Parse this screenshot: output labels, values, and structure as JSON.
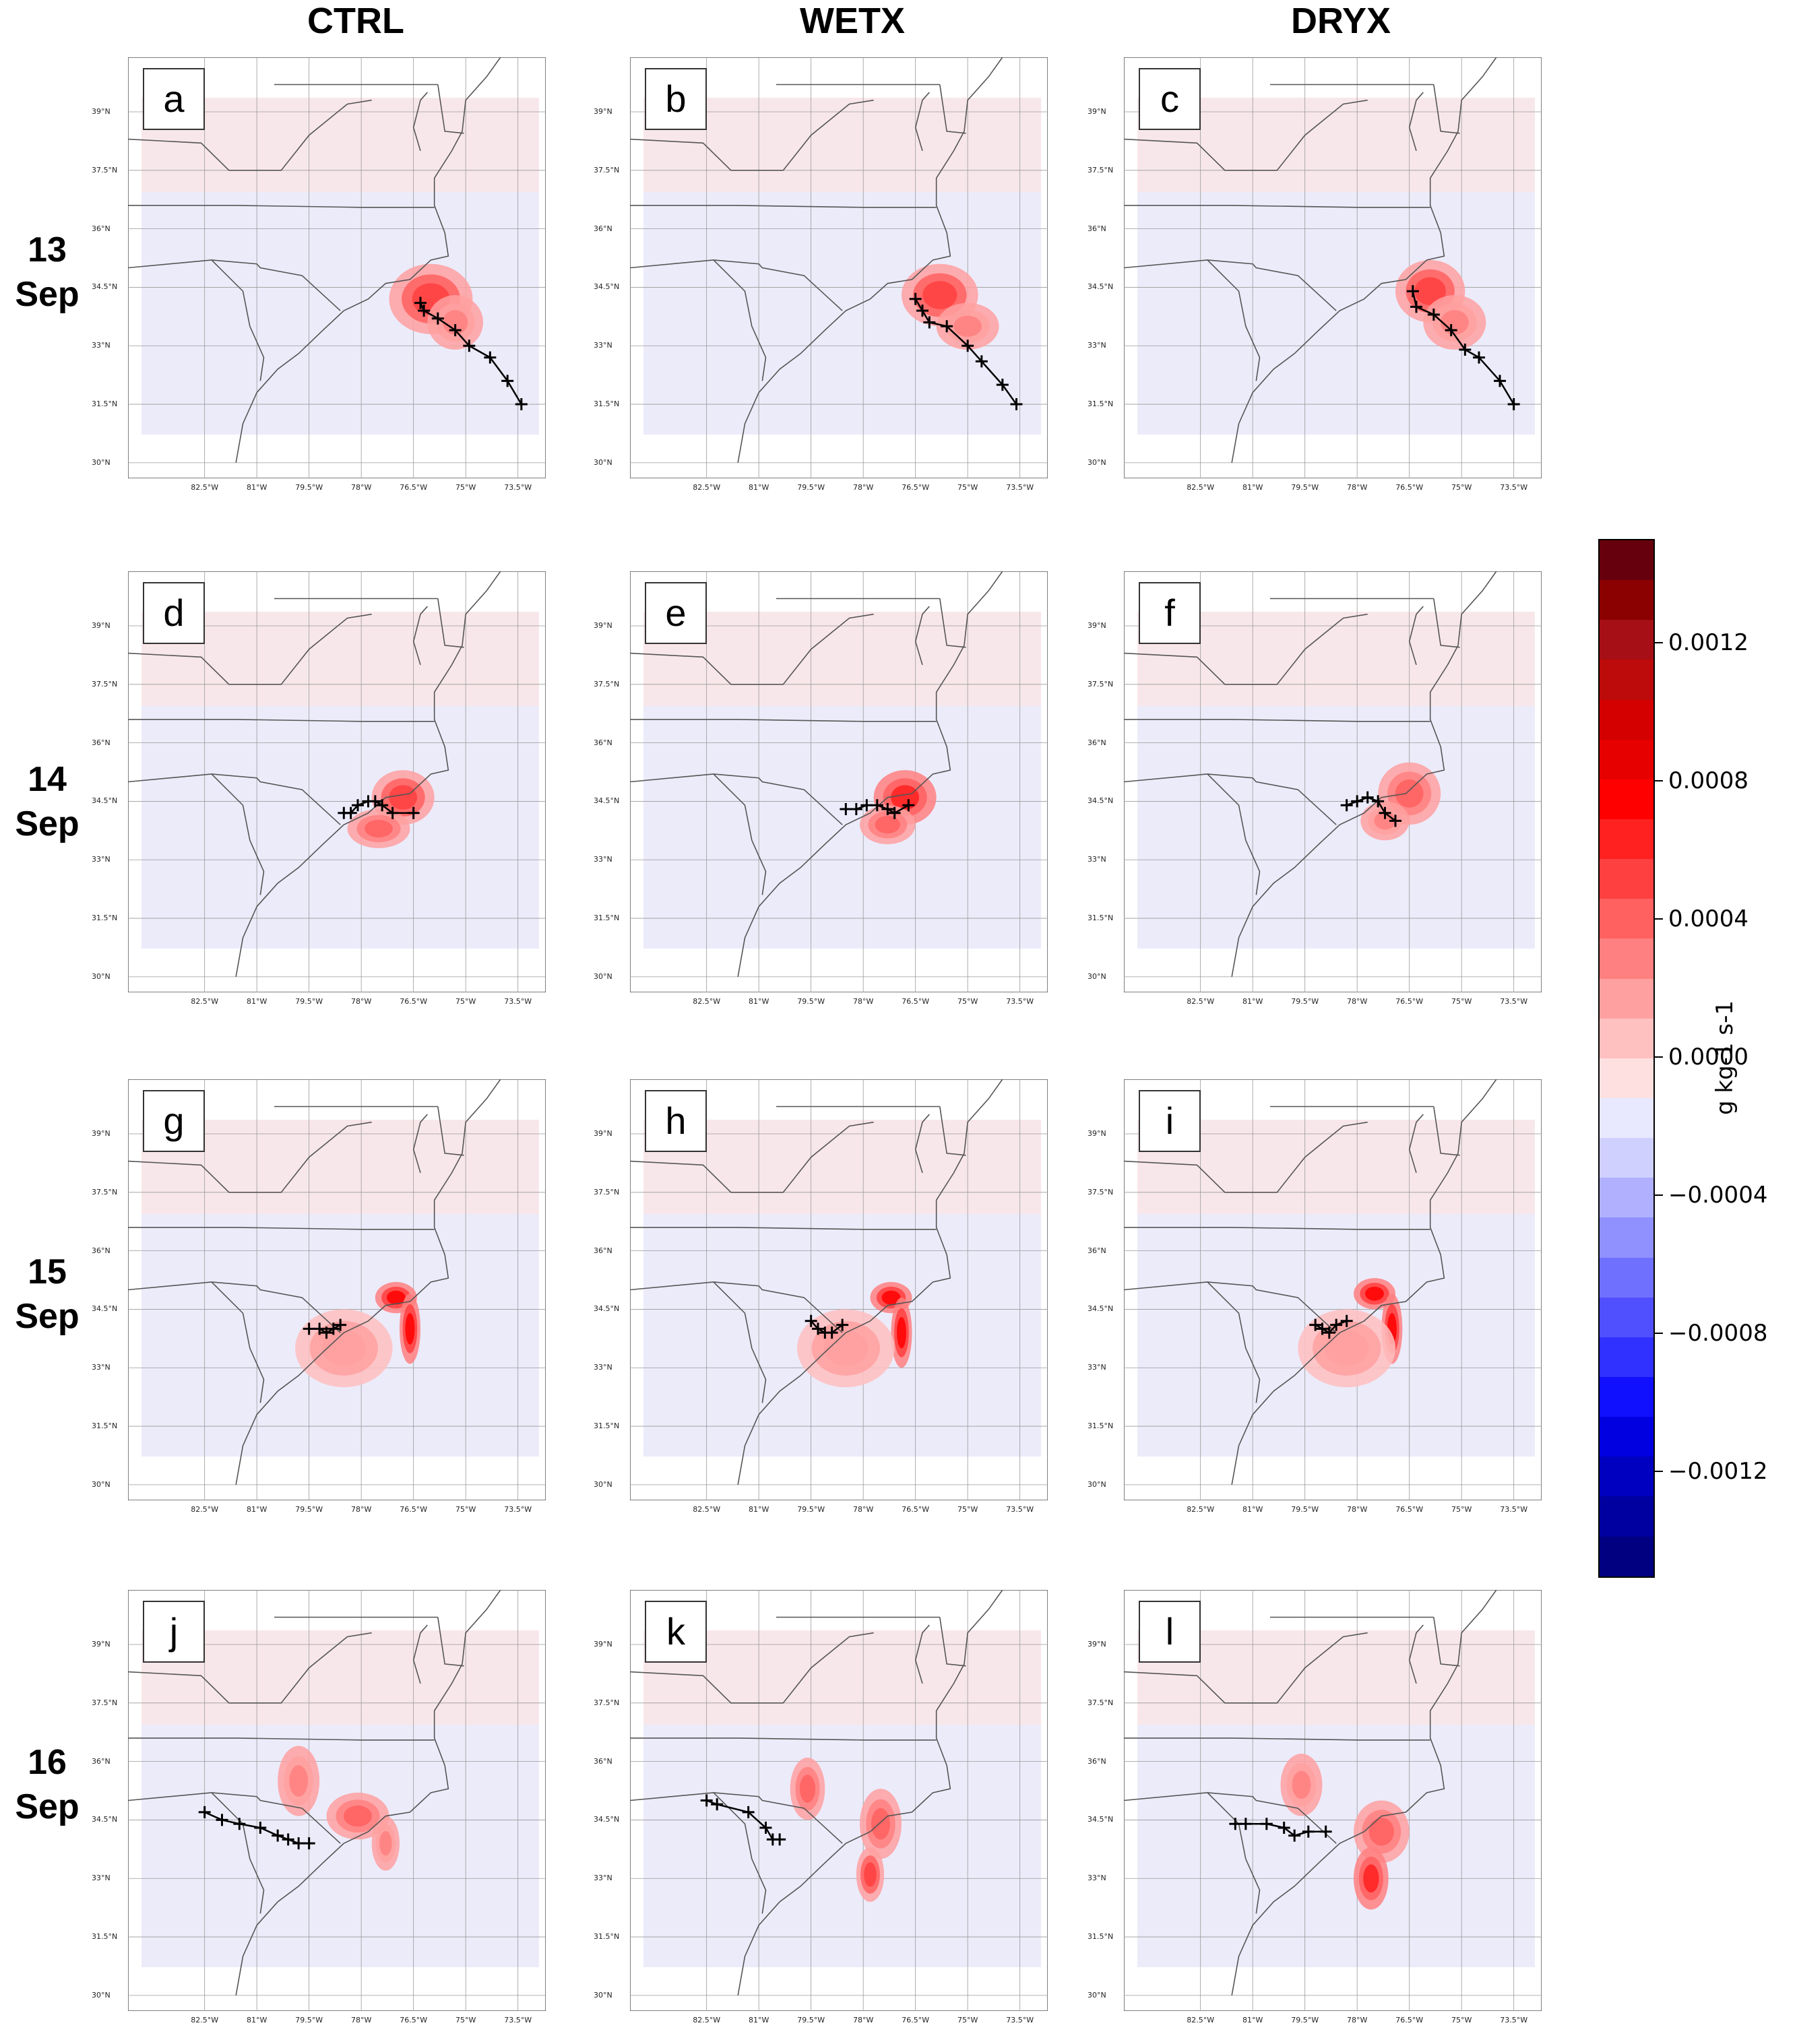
{
  "columns": [
    "CTRL",
    "WETX",
    "DRYX"
  ],
  "rows": [
    {
      "day": "13",
      "month": "Sep"
    },
    {
      "day": "14",
      "month": "Sep"
    },
    {
      "day": "15",
      "month": "Sep"
    },
    {
      "day": "16",
      "month": "Sep"
    }
  ],
  "panel_letters": [
    "a",
    "b",
    "c",
    "d",
    "e",
    "f",
    "g",
    "h",
    "i",
    "j",
    "k",
    "l"
  ],
  "lat_labels": [
    "39°N",
    "37.5°N",
    "36°N",
    "34.5°N",
    "33°N",
    "31.5°N",
    "30°N"
  ],
  "lon_labels": [
    "82.5°W",
    "81°W",
    "79.5°W",
    "78°W",
    "76.5°W",
    "75°W",
    "73.5°W"
  ],
  "colorbar": {
    "units": "g kg-1 s-1",
    "tick_labels": [
      "0.0012",
      "0.0008",
      "0.0004",
      "0.0000",
      "−0.0004",
      "−0.0008",
      "−0.0012"
    ],
    "tick_values": [
      0.0012,
      0.0008,
      0.0004,
      0.0,
      -0.0004,
      -0.0008,
      -0.0012
    ],
    "range": [
      -0.0015,
      0.0015
    ],
    "colors": [
      "#67000d",
      "#8b0000",
      "#a50f15",
      "#bd0a0a",
      "#d40000",
      "#e60000",
      "#ff0000",
      "#ff2020",
      "#ff4040",
      "#ff6060",
      "#ff8080",
      "#ffa0a0",
      "#ffc0c0",
      "#ffe0e0",
      "#e8e8ff",
      "#d0d0ff",
      "#b0b0ff",
      "#9090ff",
      "#7070ff",
      "#5050ff",
      "#3030ff",
      "#1010ff",
      "#0000e0",
      "#0000c0",
      "#0000a0",
      "#000080"
    ]
  },
  "track_colors": {
    "line": "#000000",
    "marker": "#000000"
  },
  "tracks": [
    [
      [
        -76.3,
        34.1
      ],
      [
        -76.2,
        33.9
      ],
      [
        -75.8,
        33.7
      ],
      [
        -75.3,
        33.4
      ],
      [
        -74.9,
        33.0
      ],
      [
        -74.3,
        32.7
      ],
      [
        -73.8,
        32.1
      ],
      [
        -73.4,
        31.5
      ]
    ],
    [
      [
        -76.5,
        34.2
      ],
      [
        -76.3,
        33.9
      ],
      [
        -76.1,
        33.6
      ],
      [
        -75.6,
        33.5
      ],
      [
        -75.0,
        33.0
      ],
      [
        -74.6,
        32.6
      ],
      [
        -74.0,
        32.0
      ],
      [
        -73.6,
        31.5
      ]
    ],
    [
      [
        -76.4,
        34.4
      ],
      [
        -76.3,
        34.0
      ],
      [
        -75.8,
        33.8
      ],
      [
        -75.3,
        33.4
      ],
      [
        -74.9,
        32.9
      ],
      [
        -74.5,
        32.7
      ],
      [
        -73.9,
        32.1
      ],
      [
        -73.5,
        31.5
      ]
    ],
    [
      [
        -76.5,
        34.2
      ],
      [
        -77.1,
        34.2
      ],
      [
        -77.4,
        34.4
      ],
      [
        -77.6,
        34.5
      ],
      [
        -77.8,
        34.5
      ],
      [
        -78.1,
        34.4
      ],
      [
        -78.3,
        34.2
      ],
      [
        -78.5,
        34.2
      ]
    ],
    [
      [
        -76.7,
        34.4
      ],
      [
        -77.1,
        34.2
      ],
      [
        -77.3,
        34.3
      ],
      [
        -77.6,
        34.4
      ],
      [
        -77.9,
        34.4
      ],
      [
        -78.2,
        34.3
      ],
      [
        -78.5,
        34.3
      ]
    ],
    [
      [
        -76.9,
        34.0
      ],
      [
        -77.2,
        34.2
      ],
      [
        -77.4,
        34.5
      ],
      [
        -77.7,
        34.6
      ],
      [
        -78.0,
        34.5
      ],
      [
        -78.3,
        34.4
      ]
    ],
    [
      [
        -78.6,
        34.1
      ],
      [
        -78.8,
        34.0
      ],
      [
        -79.0,
        33.9
      ],
      [
        -79.2,
        34.0
      ],
      [
        -79.5,
        34.0
      ]
    ],
    [
      [
        -78.6,
        34.1
      ],
      [
        -78.9,
        33.9
      ],
      [
        -79.1,
        33.9
      ],
      [
        -79.3,
        34.0
      ],
      [
        -79.5,
        34.2
      ]
    ],
    [
      [
        -78.3,
        34.2
      ],
      [
        -78.6,
        34.1
      ],
      [
        -78.8,
        33.9
      ],
      [
        -79.0,
        34.0
      ],
      [
        -79.2,
        34.1
      ]
    ],
    [
      [
        -79.5,
        33.9
      ],
      [
        -79.8,
        33.9
      ],
      [
        -80.1,
        34.0
      ],
      [
        -80.4,
        34.1
      ],
      [
        -80.9,
        34.3
      ],
      [
        -81.5,
        34.4
      ],
      [
        -82.0,
        34.5
      ],
      [
        -82.5,
        34.7
      ]
    ],
    [
      [
        -80.4,
        34.0
      ],
      [
        -80.6,
        34.0
      ],
      [
        -80.8,
        34.3
      ],
      [
        -81.3,
        34.7
      ],
      [
        -82.2,
        34.9
      ],
      [
        -82.5,
        35.0
      ]
    ],
    [
      [
        -78.9,
        34.2
      ],
      [
        -79.4,
        34.2
      ],
      [
        -79.8,
        34.1
      ],
      [
        -80.1,
        34.3
      ],
      [
        -80.6,
        34.4
      ],
      [
        -81.2,
        34.4
      ],
      [
        -81.5,
        34.4
      ]
    ]
  ],
  "blobs": [
    [
      [
        -76.0,
        34.2,
        1.2,
        0.9,
        0.0005
      ],
      [
        -75.3,
        33.6,
        0.8,
        0.7,
        0.0003
      ]
    ],
    [
      [
        -75.8,
        34.3,
        1.1,
        0.8,
        0.0005
      ],
      [
        -75.0,
        33.5,
        0.9,
        0.6,
        0.0003
      ]
    ],
    [
      [
        -75.9,
        34.4,
        1.0,
        0.8,
        0.0005
      ],
      [
        -75.2,
        33.6,
        0.9,
        0.7,
        0.0003
      ]
    ],
    [
      [
        -76.8,
        34.6,
        0.9,
        0.7,
        0.0005
      ],
      [
        -77.5,
        33.8,
        0.9,
        0.5,
        0.0004
      ]
    ],
    [
      [
        -76.8,
        34.6,
        0.9,
        0.7,
        0.0006
      ],
      [
        -77.3,
        33.9,
        0.8,
        0.5,
        0.0004
      ]
    ],
    [
      [
        -76.5,
        34.7,
        0.9,
        0.8,
        0.0004
      ],
      [
        -77.2,
        34.0,
        0.7,
        0.5,
        0.0003
      ]
    ],
    [
      [
        -77.0,
        34.8,
        0.6,
        0.4,
        0.0008
      ],
      [
        -76.6,
        34.0,
        0.3,
        0.9,
        0.0008
      ],
      [
        -78.5,
        33.5,
        1.4,
        1.0,
        0.0002
      ]
    ],
    [
      [
        -77.2,
        34.8,
        0.6,
        0.4,
        0.0008
      ],
      [
        -76.9,
        33.9,
        0.3,
        0.9,
        0.0007
      ],
      [
        -78.5,
        33.5,
        1.4,
        1.0,
        0.0002
      ]
    ],
    [
      [
        -77.5,
        34.9,
        0.6,
        0.4,
        0.0008
      ],
      [
        -77.0,
        34.0,
        0.3,
        0.9,
        0.0008
      ],
      [
        -78.3,
        33.5,
        1.4,
        1.0,
        0.0002
      ]
    ],
    [
      [
        -78.1,
        34.6,
        0.9,
        0.6,
        0.0004
      ],
      [
        -79.8,
        35.5,
        0.6,
        0.9,
        0.0003
      ],
      [
        -77.3,
        33.9,
        0.4,
        0.7,
        0.0003
      ]
    ],
    [
      [
        -77.5,
        34.4,
        0.6,
        0.9,
        0.0004
      ],
      [
        -79.6,
        35.3,
        0.5,
        0.8,
        0.0004
      ],
      [
        -77.8,
        33.1,
        0.4,
        0.7,
        0.0005
      ]
    ],
    [
      [
        -77.3,
        34.2,
        0.8,
        0.8,
        0.0004
      ],
      [
        -79.6,
        35.4,
        0.6,
        0.8,
        0.0003
      ],
      [
        -77.6,
        33.0,
        0.5,
        0.8,
        0.0006
      ]
    ]
  ]
}
